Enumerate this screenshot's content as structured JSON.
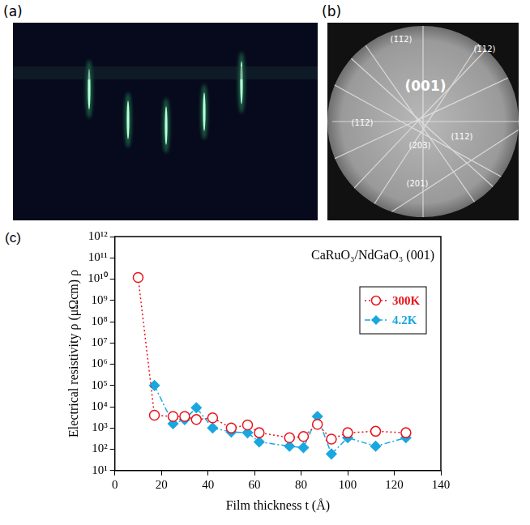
{
  "panels": {
    "a": {
      "label": "(a)"
    },
    "b": {
      "label": "(b)",
      "annotations": [
        "(1̄1̄2)",
        "(1̄12)",
        "(001)",
        "(11̄2)",
        "(112)",
        "(203)",
        "(201)"
      ]
    },
    "c": {
      "label": "(c)"
    }
  },
  "chart_data": {
    "type": "line",
    "xlabel": "Film thickness t (Å)",
    "ylabel": "Electrical resistivity ρ (μΩcm) ρ",
    "annotations": [
      "CaRuO₃/NdGaO₃ (001)"
    ],
    "x": [
      10,
      17,
      25,
      30,
      35,
      42,
      50,
      57,
      62,
      75,
      81,
      87,
      93,
      100,
      112,
      125
    ],
    "series": [
      {
        "name": "300K",
        "color": "#e8141b",
        "marker": "circle_open",
        "line_style": "dotted",
        "values": [
          12000000000,
          4000,
          3500,
          3500,
          2500,
          3000,
          1000,
          1400,
          600,
          350,
          400,
          1500,
          300,
          600,
          700,
          600
        ]
      },
      {
        "name": "4.2K",
        "color": "#1aa7e0",
        "marker": "diamond",
        "line_style": "dashdot",
        "values": [
          null,
          100000,
          1600,
          2500,
          9000,
          1000,
          650,
          600,
          220,
          140,
          120,
          3500,
          60,
          350,
          140,
          350
        ]
      }
    ],
    "xlim": [
      0,
      140
    ],
    "xticks": [
      0,
      20,
      40,
      60,
      80,
      100,
      120,
      140
    ],
    "ylim": [
      10,
      1000000000000
    ],
    "yticks": [
      {
        "value": 10,
        "label": "10¹"
      },
      {
        "value": 100,
        "label": "10²"
      },
      {
        "value": 1000,
        "label": "10³"
      },
      {
        "value": 10000,
        "label": "10⁴"
      },
      {
        "value": 100000,
        "label": "10⁵"
      },
      {
        "value": 1000000,
        "label": "10⁶"
      },
      {
        "value": 10000000,
        "label": "10⁷"
      },
      {
        "value": 100000000,
        "label": "10⁸"
      },
      {
        "value": 1000000000,
        "label": "10⁹"
      },
      {
        "value": 10000000000,
        "label": "10¹⁰"
      },
      {
        "value": 100000000000,
        "label": "10¹¹"
      },
      {
        "value": 1000000000000,
        "label": "10¹²"
      }
    ],
    "log": "y",
    "grid": false,
    "legend": "upper right"
  }
}
